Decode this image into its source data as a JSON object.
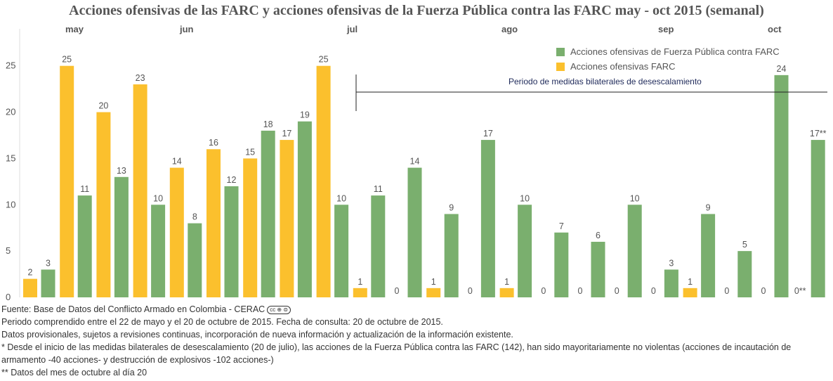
{
  "title": "Acciones ofensivas de las FARC y acciones ofensivas de la Fuerza Pública contra las FARC may - oct 2015 (semanal)",
  "months": [
    "may",
    "jun",
    "jul",
    "ago",
    "sep",
    "oct"
  ],
  "period_label": "Periodo de medidas bilaterales de desescalamiento",
  "colors": {
    "green": "#7aaf6e",
    "yellow": "#fbc02d"
  },
  "notes": {
    "source": "Fuente: Base de Datos del Conflicto Armado en Colombia - CERAC",
    "cc_badge": "cc ⊕ ⊜",
    "period": "Periodo comprendido entre el 22 de mayo y el 20 de octubre de 2015. Fecha de consulta: 20 de octubre de 2015.",
    "provisional": "Datos provisionales, sujetos a revisiones continuas, incorporación de nueva información y actualización de la información existente.",
    "footnote1": "* Desde el inicio de las medidas bilaterales de desescalamiento (20 de julio), las acciones de la Fuerza Pública contra las FARC (142), han sido mayoritariamente no violentas (acciones de incautación de armamento -40 acciones- y destrucción de explosivos -102 acciones-)",
    "footnote2": "** Datos del mes de octubre al día 20"
  },
  "chart_data": {
    "type": "bar",
    "title": "Acciones ofensivas de las FARC y acciones ofensivas de la Fuerza Pública contra las FARC may - oct 2015 (semanal)",
    "ylim": [
      0,
      29
    ],
    "yticks": [
      0,
      5,
      10,
      15,
      20,
      25
    ],
    "grid": false,
    "legend_position": "top-right",
    "series": [
      {
        "name": "Acciones ofensivas de Fuerza Pública contra FARC",
        "color": "#7aaf6e",
        "values": [
          3,
          11,
          13,
          10,
          8,
          12,
          18,
          19,
          10,
          11,
          14,
          9,
          17,
          10,
          7,
          6,
          10,
          3,
          9,
          5,
          24,
          17
        ],
        "labels": [
          "3",
          "11",
          "13",
          "10",
          "8",
          "12",
          "18",
          "19",
          "10",
          "11",
          "14",
          "9",
          "17",
          "10",
          "7",
          "6",
          "10",
          "3",
          "9",
          "5",
          "24",
          "17**"
        ]
      },
      {
        "name": "Acciones ofensivas FARC",
        "color": "#fbc02d",
        "values": [
          2,
          25,
          20,
          23,
          14,
          16,
          15,
          17,
          25,
          1,
          0,
          1,
          0,
          1,
          0,
          0,
          0,
          0,
          1,
          0,
          0,
          0
        ],
        "labels": [
          "2",
          "25",
          "20",
          "23",
          "14",
          "16",
          "15",
          "17",
          "25",
          "1",
          "0",
          "1",
          "0",
          "1",
          "0",
          "0",
          "0",
          "0",
          "1",
          "0",
          "0",
          "0**"
        ]
      }
    ]
  }
}
